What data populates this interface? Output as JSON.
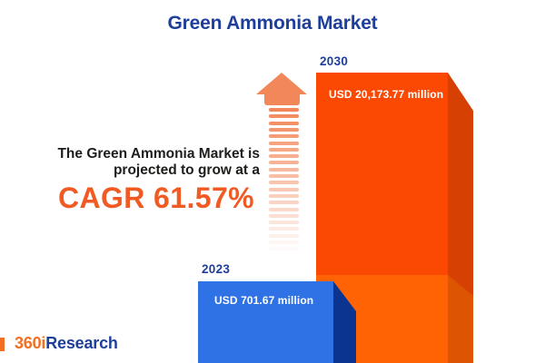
{
  "title": "Green Ammonia Market",
  "statement": {
    "line1": "The Green Ammonia Market is",
    "line2": "projected to grow at a",
    "cagr_label": "CAGR 61.57%"
  },
  "chart_data": {
    "type": "bar",
    "title": "Green Ammonia Market",
    "categories": [
      "2023",
      "2030"
    ],
    "values": [
      701.67,
      20173.77
    ],
    "unit": "USD million",
    "value_labels": [
      "USD 701.67 million",
      "USD 20,173.77 million"
    ],
    "cagr_percent": 61.57,
    "legend": "none",
    "grid": false,
    "bar_colors": [
      "#2F72E5",
      "#FB4903"
    ]
  },
  "bars": {
    "b2023": {
      "year": "2023",
      "value_label": "USD 701.67 million"
    },
    "b2030": {
      "year": "2030",
      "value_label": "USD 20,173.77 million"
    }
  },
  "logo": {
    "prefix": "360i",
    "suffix": "Research"
  },
  "colors": {
    "title_blue": "#1E3F99",
    "statement_text": "#1D1D1B",
    "cagr_orange": "#F15A22",
    "bar_2023_front": "#2F72E5",
    "bar_2023_side": "#0A3490",
    "bar_2030_front": "#FB4903",
    "bar_2030_side": "#D64103",
    "bar_2030_base_front": "#FF6303",
    "bar_2030_base_side": "#DD5502",
    "arrow_orange": "#F2875A",
    "logo_orange": "#F36F21",
    "logo_blue": "#1E3F99"
  }
}
